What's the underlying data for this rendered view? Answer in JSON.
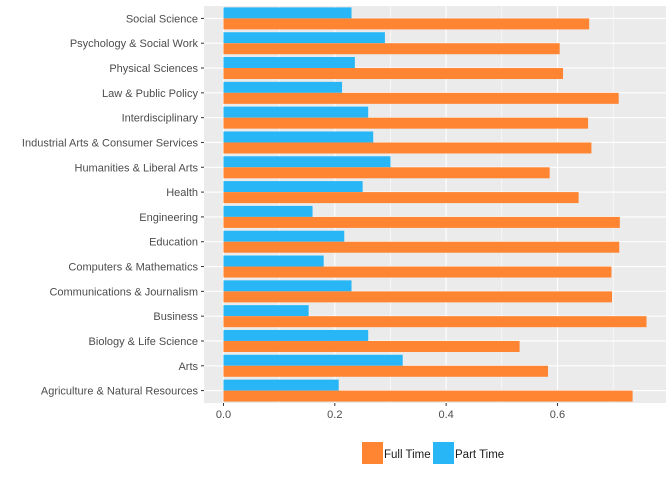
{
  "chart_data": {
    "type": "bar",
    "orientation": "horizontal",
    "categories": [
      "Social Science",
      "Psychology & Social Work",
      "Physical Sciences",
      "Law & Public Policy",
      "Interdisciplinary",
      "Industrial Arts & Consumer Services",
      "Humanities & Liberal Arts",
      "Health",
      "Engineering",
      "Education",
      "Computers & Mathematics",
      "Communications & Journalism",
      "Business",
      "Biology & Life Science",
      "Arts",
      "Agriculture & Natural Resources"
    ],
    "series": [
      {
        "name": "Part Time",
        "color": "#29B6F6",
        "values": [
          0.23,
          0.29,
          0.236,
          0.213,
          0.26,
          0.269,
          0.3,
          0.25,
          0.16,
          0.217,
          0.18,
          0.23,
          0.153,
          0.26,
          0.322,
          0.207
        ]
      },
      {
        "name": "Full Time",
        "color": "#FF8533",
        "values": [
          0.657,
          0.604,
          0.61,
          0.71,
          0.655,
          0.661,
          0.586,
          0.638,
          0.712,
          0.711,
          0.697,
          0.698,
          0.76,
          0.532,
          0.583,
          0.735
        ]
      }
    ],
    "xticks": [
      "0.0",
      "0.2",
      "0.4",
      "0.6"
    ],
    "xlim": [
      -0.035,
      0.795
    ],
    "xlabel": "",
    "ylabel": "",
    "title": "",
    "grid": true,
    "legend_position": "bottom",
    "legend": [
      "Full Time",
      "Part Time"
    ]
  }
}
